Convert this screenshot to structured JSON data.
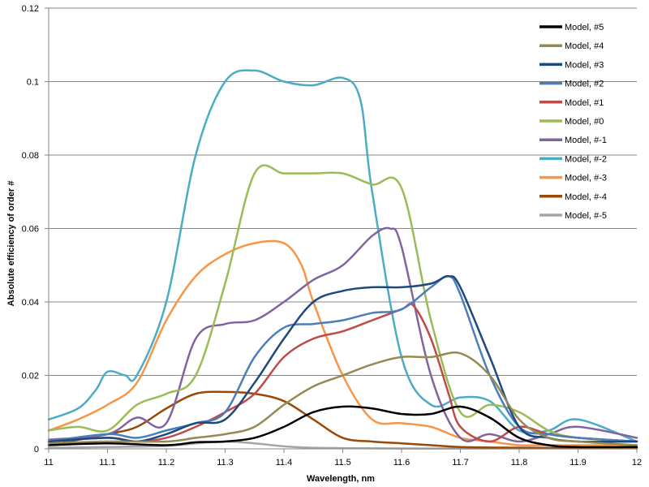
{
  "chart_data": {
    "type": "line",
    "xlabel": "Wavelength, nm",
    "ylabel": "Absolute efficiency of order #",
    "xlim": [
      11,
      12
    ],
    "ylim": [
      0,
      0.12
    ],
    "x_ticks": [
      "11",
      "11.1",
      "11.2",
      "11.3",
      "11.4",
      "11.5",
      "11.6",
      "11.7",
      "11.8",
      "11.9",
      "12"
    ],
    "y_ticks": [
      "0",
      "0.02",
      "0.04",
      "0.06",
      "0.08",
      "0.1",
      "0.12"
    ],
    "grid": "horizontal",
    "legend_position": "top-right",
    "series": [
      {
        "name": "Model, #5",
        "color": "#000000",
        "x": [
          11,
          11.1,
          11.2,
          11.25,
          11.3,
          11.35,
          11.4,
          11.45,
          11.5,
          11.55,
          11.6,
          11.65,
          11.7,
          11.75,
          11.8,
          11.85,
          11.9,
          12
        ],
        "y": [
          0.001,
          0.0015,
          0.001,
          0.0018,
          0.002,
          0.003,
          0.006,
          0.01,
          0.0115,
          0.011,
          0.0095,
          0.0095,
          0.0115,
          0.0085,
          0.003,
          0.001,
          0.0005,
          0.0005
        ]
      },
      {
        "name": "Model, #4",
        "color": "#948A54",
        "x": [
          11,
          11.1,
          11.2,
          11.25,
          11.3,
          11.35,
          11.4,
          11.45,
          11.5,
          11.55,
          11.6,
          11.65,
          11.7,
          11.75,
          11.8,
          11.85,
          11.9,
          12
        ],
        "y": [
          0.0015,
          0.002,
          0.002,
          0.003,
          0.004,
          0.006,
          0.012,
          0.017,
          0.02,
          0.023,
          0.025,
          0.025,
          0.026,
          0.02,
          0.008,
          0.003,
          0.002,
          0.001
        ]
      },
      {
        "name": "Model, #3",
        "color": "#1F497D",
        "x": [
          11,
          11.1,
          11.15,
          11.2,
          11.25,
          11.3,
          11.35,
          11.4,
          11.45,
          11.5,
          11.55,
          11.6,
          11.65,
          11.68,
          11.7,
          11.75,
          11.8,
          11.85,
          11.9,
          12
        ],
        "y": [
          0.002,
          0.003,
          0.002,
          0.004,
          0.007,
          0.008,
          0.018,
          0.03,
          0.04,
          0.043,
          0.044,
          0.044,
          0.045,
          0.047,
          0.044,
          0.025,
          0.006,
          0.003,
          0.002,
          0.002
        ]
      },
      {
        "name": "Model, #2",
        "color": "#4A7EBB",
        "x": [
          11,
          11.1,
          11.15,
          11.2,
          11.25,
          11.3,
          11.35,
          11.4,
          11.45,
          11.5,
          11.55,
          11.6,
          11.65,
          11.68,
          11.7,
          11.75,
          11.8,
          11.85,
          11.9,
          12
        ],
        "y": [
          0.002,
          0.004,
          0.003,
          0.005,
          0.007,
          0.01,
          0.025,
          0.033,
          0.034,
          0.035,
          0.037,
          0.038,
          0.044,
          0.047,
          0.042,
          0.02,
          0.006,
          0.004,
          0.003,
          0.002
        ]
      },
      {
        "name": "Model, #1",
        "color": "#BE4B48",
        "x": [
          11,
          11.1,
          11.15,
          11.2,
          11.25,
          11.3,
          11.35,
          11.4,
          11.45,
          11.5,
          11.55,
          11.6,
          11.62,
          11.65,
          11.68,
          11.7,
          11.75,
          11.8,
          11.85,
          11.9,
          12
        ],
        "y": [
          0.002,
          0.003,
          0.002,
          0.003,
          0.006,
          0.01,
          0.015,
          0.025,
          0.03,
          0.032,
          0.035,
          0.038,
          0.039,
          0.03,
          0.015,
          0.006,
          0.002,
          0.006,
          0.004,
          0.003,
          0.002
        ]
      },
      {
        "name": "Model, #0",
        "color": "#9BBB59",
        "x": [
          11,
          11.05,
          11.1,
          11.15,
          11.2,
          11.25,
          11.3,
          11.35,
          11.4,
          11.45,
          11.5,
          11.55,
          11.6,
          11.65,
          11.7,
          11.75,
          11.8,
          11.85,
          11.9,
          12
        ],
        "y": [
          0.005,
          0.006,
          0.005,
          0.012,
          0.015,
          0.02,
          0.045,
          0.075,
          0.075,
          0.075,
          0.075,
          0.072,
          0.071,
          0.035,
          0.01,
          0.012,
          0.01,
          0.005,
          0.003,
          0.002
        ]
      },
      {
        "name": "Model, #-1",
        "color": "#8064A2",
        "x": [
          11,
          11.1,
          11.15,
          11.2,
          11.25,
          11.3,
          11.35,
          11.4,
          11.45,
          11.5,
          11.55,
          11.58,
          11.6,
          11.65,
          11.7,
          11.75,
          11.8,
          11.85,
          11.9,
          12
        ],
        "y": [
          0.0025,
          0.004,
          0.0085,
          0.007,
          0.03,
          0.034,
          0.035,
          0.04,
          0.046,
          0.05,
          0.058,
          0.06,
          0.055,
          0.02,
          0.003,
          0.004,
          0.002,
          0.004,
          0.006,
          0.003
        ]
      },
      {
        "name": "Model, #-2",
        "color": "#4BACC6",
        "x": [
          11,
          11.05,
          11.08,
          11.1,
          11.13,
          11.15,
          11.2,
          11.25,
          11.3,
          11.35,
          11.4,
          11.45,
          11.5,
          11.53,
          11.55,
          11.6,
          11.65,
          11.7,
          11.75,
          11.8,
          11.85,
          11.9,
          12
        ],
        "y": [
          0.008,
          0.011,
          0.016,
          0.021,
          0.02,
          0.02,
          0.04,
          0.08,
          0.1,
          0.103,
          0.1,
          0.099,
          0.101,
          0.095,
          0.07,
          0.025,
          0.012,
          0.014,
          0.013,
          0.005,
          0.005,
          0.008,
          0.002
        ]
      },
      {
        "name": "Model, #-3",
        "color": "#F79646",
        "x": [
          11,
          11.05,
          11.1,
          11.15,
          11.2,
          11.25,
          11.3,
          11.35,
          11.4,
          11.43,
          11.45,
          11.5,
          11.55,
          11.6,
          11.65,
          11.7,
          11.75,
          11.8,
          11.85,
          11.9,
          12
        ],
        "y": [
          0.005,
          0.008,
          0.012,
          0.018,
          0.035,
          0.047,
          0.053,
          0.056,
          0.056,
          0.05,
          0.04,
          0.02,
          0.008,
          0.007,
          0.006,
          0.003,
          0.002,
          0.001,
          0.001,
          0.001,
          0.001
        ]
      },
      {
        "name": "Model, #-4",
        "color": "#984807",
        "x": [
          11,
          11.1,
          11.15,
          11.2,
          11.25,
          11.3,
          11.35,
          11.4,
          11.45,
          11.5,
          11.55,
          11.6,
          11.65,
          11.7,
          11.8,
          11.9,
          12
        ],
        "y": [
          0.001,
          0.004,
          0.006,
          0.011,
          0.015,
          0.0155,
          0.015,
          0.013,
          0.008,
          0.003,
          0.002,
          0.0015,
          0.001,
          0.0005,
          0.0003,
          0.0002,
          0.0002
        ]
      },
      {
        "name": "Model, #-5",
        "color": "#A5A5A5",
        "x": [
          11,
          11.1,
          11.2,
          11.25,
          11.3,
          11.35,
          11.4,
          11.45,
          11.5,
          11.6,
          11.7,
          11.8,
          11.9,
          12
        ],
        "y": [
          0.0003,
          0.0005,
          0.0008,
          0.0015,
          0.002,
          0.0015,
          0.0007,
          0.0003,
          0.0002,
          0.0001,
          0.0001,
          0.0001,
          0.0001,
          0.0001
        ]
      }
    ]
  }
}
